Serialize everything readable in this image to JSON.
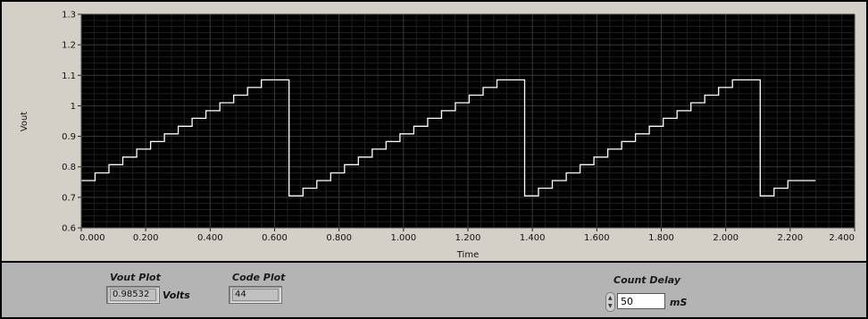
{
  "chart_data": {
    "type": "line",
    "title": "",
    "xlabel": "Time",
    "ylabel": "Vout",
    "xlim": [
      0,
      2.4
    ],
    "ylim": [
      0.6,
      1.3
    ],
    "x_ticks": [
      "0.000",
      "0.200",
      "0.400",
      "0.600",
      "0.800",
      "1.000",
      "1.200",
      "1.400",
      "1.600",
      "1.800",
      "2.000",
      "2.200",
      "2.400"
    ],
    "y_ticks": [
      "0.6",
      "0.7",
      "0.8",
      "0.9",
      "1",
      "1.1",
      "1.2",
      "1.3"
    ],
    "grid": true,
    "colors": {
      "plot_bg": "#000000",
      "trace": "#ffffff",
      "grid": "#3a3a3a",
      "panel_bg": "#d4d0c8"
    },
    "step_dt": 0.043,
    "series": [
      {
        "values": [
          0.755,
          0.78,
          0.807,
          0.832,
          0.858,
          0.883,
          0.908,
          0.933,
          0.959,
          0.984,
          1.01,
          1.035,
          1.06,
          1.085,
          1.085,
          0.705,
          0.73,
          0.755,
          0.78,
          0.807,
          0.832,
          0.858,
          0.883,
          0.908,
          0.933,
          0.959,
          0.984,
          1.01,
          1.035,
          1.06,
          1.085,
          1.085,
          0.705,
          0.73,
          0.755,
          0.78,
          0.807,
          0.832,
          0.858,
          0.883,
          0.908,
          0.933,
          0.959,
          0.984,
          1.01,
          1.035,
          1.06,
          1.085,
          1.085,
          0.705,
          0.73,
          0.755,
          0.755
        ]
      }
    ]
  },
  "indicators": {
    "vout": {
      "label": "Vout Plot",
      "value": "0.98532",
      "unit": "Volts"
    },
    "code": {
      "label": "Code Plot",
      "value": "44"
    }
  },
  "count_delay": {
    "label": "Count Delay",
    "value": "50",
    "unit": "mS"
  }
}
